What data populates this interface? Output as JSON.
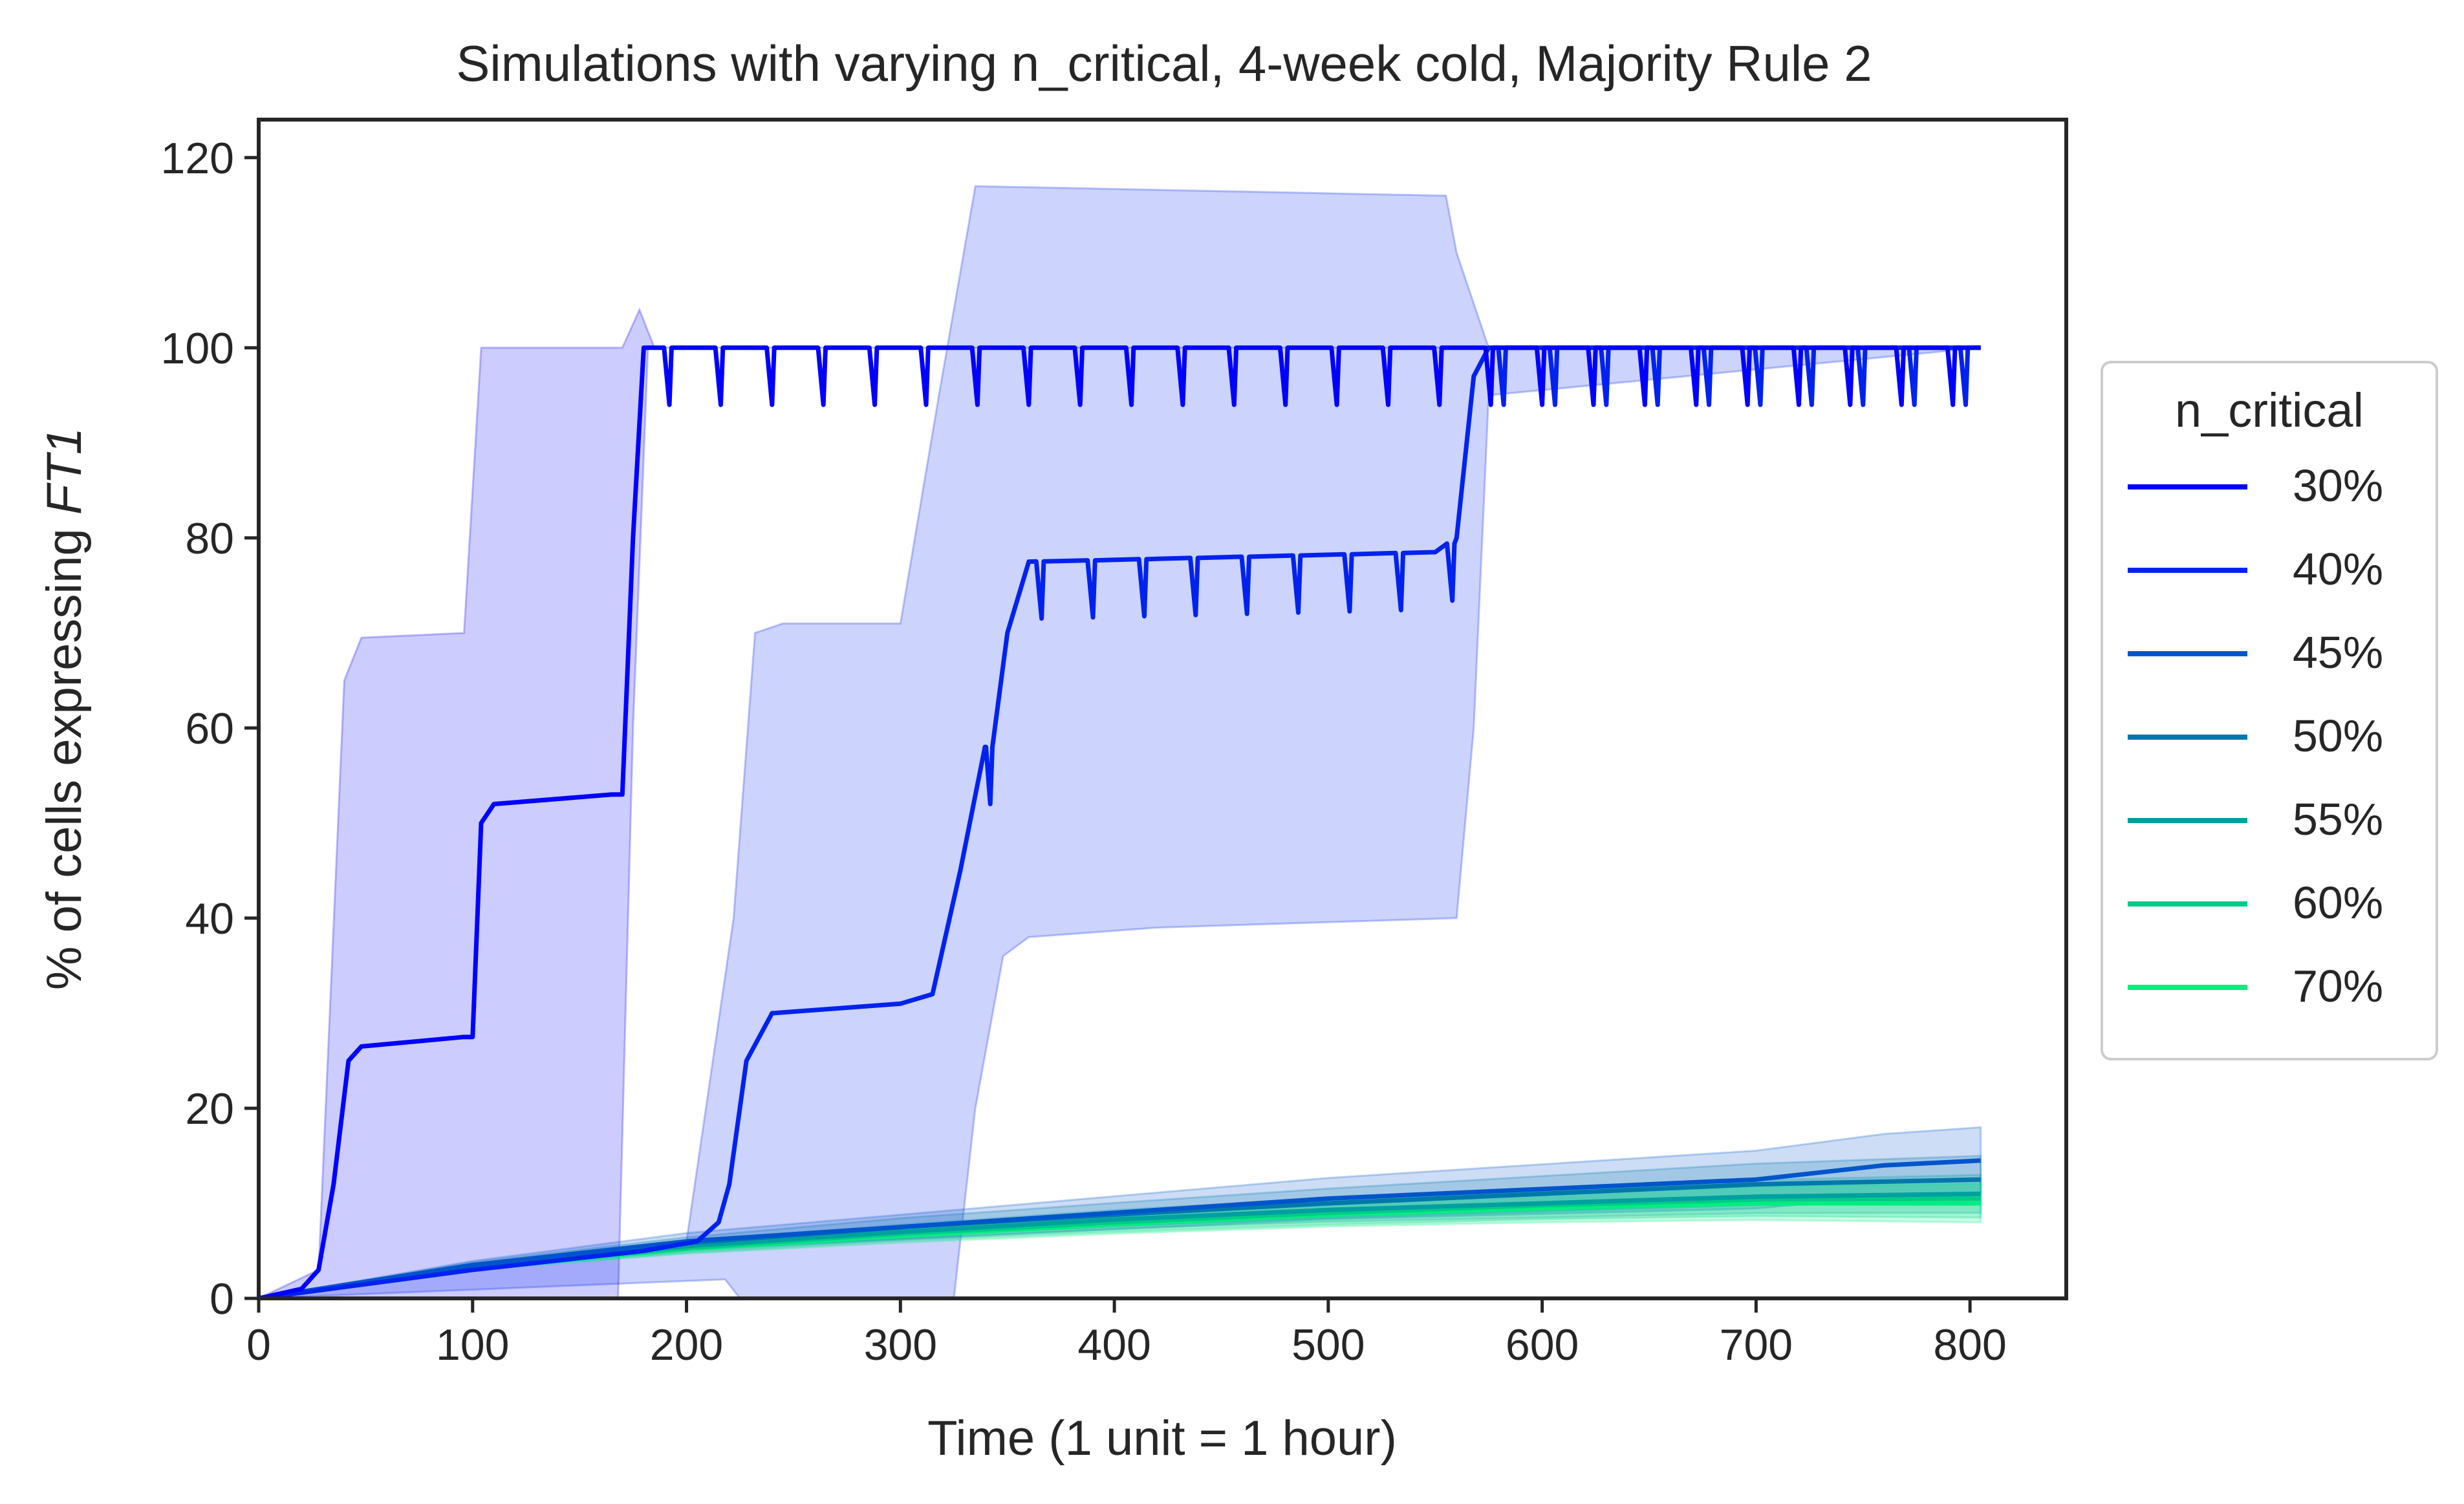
{
  "chart_data": {
    "type": "line",
    "title": "Simulations with varying n_critical, 4-week cold, Majority Rule 2",
    "xlabel": "Time (1 unit = 1 hour)",
    "ylabel_prefix": "% of cells expressing ",
    "ylabel_italic": "FT1",
    "xlim": [
      0,
      845
    ],
    "ylim": [
      0,
      124
    ],
    "xticks": [
      0,
      100,
      200,
      300,
      400,
      500,
      600,
      700,
      800
    ],
    "yticks": [
      0,
      20,
      40,
      60,
      80,
      100,
      120
    ],
    "grid": false,
    "legend": {
      "title": "n_critical",
      "placement": "right-outside"
    },
    "series": [
      {
        "name": "30%",
        "color": "#0000ff",
        "points": [
          [
            0,
            0
          ],
          [
            20,
            1
          ],
          [
            28,
            3
          ],
          [
            35,
            12
          ],
          [
            42,
            25
          ],
          [
            48,
            26.5
          ],
          [
            96,
            27.5
          ],
          [
            100,
            27.5
          ],
          [
            104,
            50
          ],
          [
            110,
            52
          ],
          [
            165,
            53
          ],
          [
            170,
            53
          ],
          [
            175,
            80
          ],
          [
            180,
            100
          ],
          [
            805,
            100
          ]
        ],
        "dips": {
          "start": 190,
          "period": 24,
          "end": 805,
          "depth": 6
        },
        "band": {
          "upper": [
            [
              0,
              0
            ],
            [
              28,
              3
            ],
            [
              40,
              65
            ],
            [
              48,
              69.5
            ],
            [
              96,
              70
            ],
            [
              104,
              100
            ],
            [
              170,
              100
            ],
            [
              178,
              104
            ],
            [
              185,
              100
            ],
            [
              805,
              100
            ]
          ],
          "lower": [
            [
              0,
              0
            ],
            [
              168,
              0
            ],
            [
              175,
              60
            ],
            [
              182,
              100
            ],
            [
              805,
              100
            ]
          ]
        }
      },
      {
        "name": "40%",
        "color": "#0022ee",
        "points": [
          [
            0,
            0
          ],
          [
            100,
            3
          ],
          [
            180,
            5
          ],
          [
            205,
            6
          ],
          [
            215,
            8
          ],
          [
            220,
            12
          ],
          [
            228,
            25
          ],
          [
            240,
            30
          ],
          [
            300,
            31
          ],
          [
            315,
            32
          ],
          [
            328,
            45
          ],
          [
            340,
            58
          ],
          [
            350,
            70
          ],
          [
            360,
            77.5
          ],
          [
            420,
            77.8
          ],
          [
            550,
            78.5
          ],
          [
            560,
            80
          ],
          [
            568,
            97
          ],
          [
            575,
            100
          ],
          [
            805,
            100
          ]
        ],
        "dips": {
          "start": 340,
          "period": 24,
          "end": 805,
          "depth": 6
        },
        "band": {
          "upper": [
            [
              0,
              0
            ],
            [
              200,
              6
            ],
            [
              222,
              40
            ],
            [
              232,
              70
            ],
            [
              245,
              71
            ],
            [
              300,
              71
            ],
            [
              318,
              95
            ],
            [
              335,
              117
            ],
            [
              555,
              116
            ],
            [
              560,
              110
            ],
            [
              575,
              100
            ],
            [
              805,
              100
            ]
          ],
          "lower": [
            [
              0,
              0
            ],
            [
              218,
              2
            ],
            [
              225,
              0
            ],
            [
              325,
              0
            ],
            [
              335,
              20
            ],
            [
              348,
              36
            ],
            [
              360,
              38
            ],
            [
              420,
              39
            ],
            [
              560,
              40
            ],
            [
              568,
              60
            ],
            [
              575,
              95
            ],
            [
              805,
              100
            ]
          ]
        }
      },
      {
        "name": "45%",
        "color": "#0055cc",
        "points": [
          [
            0,
            0
          ],
          [
            100,
            3.5
          ],
          [
            200,
            6
          ],
          [
            300,
            7.5
          ],
          [
            400,
            9
          ],
          [
            500,
            10.5
          ],
          [
            600,
            11.5
          ],
          [
            700,
            12.5
          ],
          [
            760,
            14
          ],
          [
            805,
            14.5
          ]
        ],
        "band_width": 3.5
      },
      {
        "name": "50%",
        "color": "#0078aa",
        "points": [
          [
            0,
            0
          ],
          [
            100,
            3.5
          ],
          [
            200,
            5.8
          ],
          [
            300,
            7.5
          ],
          [
            400,
            8.8
          ],
          [
            500,
            10
          ],
          [
            600,
            11
          ],
          [
            700,
            12
          ],
          [
            805,
            12.5
          ]
        ],
        "band_width": 2.5
      },
      {
        "name": "55%",
        "color": "#00a0a0",
        "points": [
          [
            0,
            0
          ],
          [
            100,
            3.4
          ],
          [
            200,
            5.5
          ],
          [
            300,
            7
          ],
          [
            400,
            8.3
          ],
          [
            500,
            9.3
          ],
          [
            600,
            10
          ],
          [
            700,
            10.7
          ],
          [
            805,
            11
          ]
        ],
        "band_width": 2
      },
      {
        "name": "60%",
        "color": "#00cc88",
        "points": [
          [
            0,
            0
          ],
          [
            100,
            3.3
          ],
          [
            200,
            5.3
          ],
          [
            300,
            6.8
          ],
          [
            400,
            8
          ],
          [
            500,
            9
          ],
          [
            600,
            9.8
          ],
          [
            700,
            10.4
          ],
          [
            805,
            10.5
          ]
        ],
        "band_width": 2
      },
      {
        "name": "70%",
        "color": "#00ee80",
        "points": [
          [
            0,
            0
          ],
          [
            100,
            3.2
          ],
          [
            200,
            5.2
          ],
          [
            300,
            6.6
          ],
          [
            400,
            7.8
          ],
          [
            500,
            8.8
          ],
          [
            600,
            9.5
          ],
          [
            700,
            10
          ],
          [
            805,
            10
          ]
        ],
        "band_width": 2
      }
    ]
  }
}
